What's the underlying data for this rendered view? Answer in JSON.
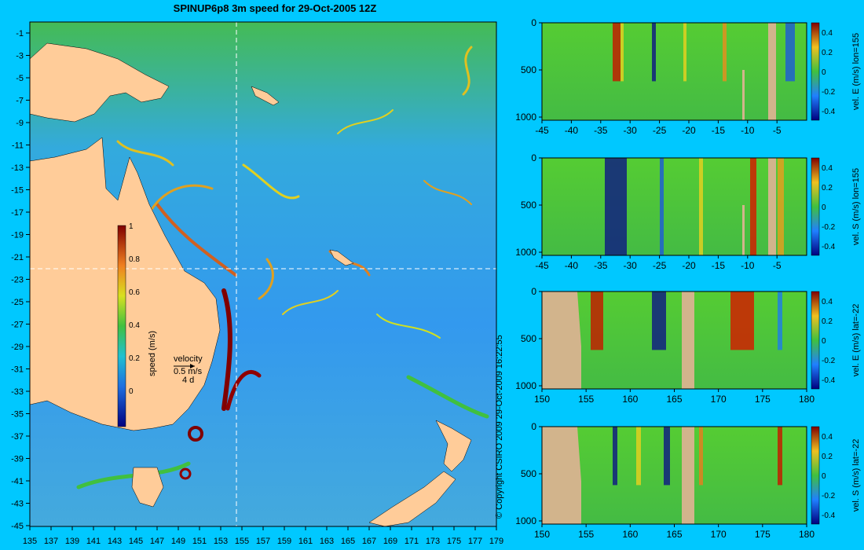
{
  "title": "SPINUP6p8 3m speed for 29-Oct-2005 12Z",
  "copyright": "© Copyright CSIRO 2009   29-Oct-2009 16:22:55",
  "colors": {
    "background": "#00c8ff",
    "land": "#ffcc99",
    "section_land": "#d2b48c"
  },
  "map": {
    "x_ticks": [
      "135",
      "137",
      "139",
      "141",
      "143",
      "145",
      "147",
      "149",
      "151",
      "153",
      "155",
      "157",
      "159",
      "161",
      "163",
      "165",
      "167",
      "169",
      "171",
      "173",
      "175",
      "177",
      "179"
    ],
    "y_ticks": [
      "-1",
      "-3",
      "-5",
      "-7",
      "-9",
      "-11",
      "-13",
      "-15",
      "-17",
      "-19",
      "-21",
      "-23",
      "-25",
      "-27",
      "-29",
      "-31",
      "-33",
      "-35",
      "-37",
      "-39",
      "-41",
      "-43",
      "-45"
    ],
    "colorbar": {
      "label": "speed (m/s)",
      "ticks": [
        "1",
        "0.8",
        "0.6",
        "0.4",
        "0.2",
        "0"
      ]
    },
    "velocity_key": {
      "label": "velocity",
      "speed": "0.5 m/s",
      "duration": "4 d"
    }
  },
  "sections": [
    {
      "label": "vel. E (m/s) lon=155",
      "x_ticks": [
        "-45",
        "-40",
        "-35",
        "-30",
        "-25",
        "-20",
        "-15",
        "-10",
        "-5"
      ],
      "y_ticks": [
        "0",
        "500",
        "1000"
      ],
      "cbar_ticks": [
        "0.4",
        "0.2",
        "0",
        "-0.2",
        "-0.4"
      ]
    },
    {
      "label": "vel. S (m/s) lon=155",
      "x_ticks": [
        "-45",
        "-40",
        "-35",
        "-30",
        "-25",
        "-20",
        "-15",
        "-10",
        "-5"
      ],
      "y_ticks": [
        "0",
        "500",
        "1000"
      ],
      "cbar_ticks": [
        "0.4",
        "0.2",
        "0",
        "-0.2",
        "-0.4"
      ]
    },
    {
      "label": "vel. E (m/s) lat=-22",
      "x_ticks": [
        "150",
        "155",
        "160",
        "165",
        "170",
        "175",
        "180"
      ],
      "y_ticks": [
        "0",
        "500",
        "1000"
      ],
      "cbar_ticks": [
        "0.4",
        "0.2",
        "0",
        "-0.2",
        "-0.4"
      ]
    },
    {
      "label": "vel. S (m/s) lat=-22",
      "x_ticks": [
        "150",
        "155",
        "160",
        "165",
        "170",
        "175",
        "180"
      ],
      "y_ticks": [
        "0",
        "500",
        "1000"
      ],
      "cbar_ticks": [
        "0.4",
        "0.2",
        "0",
        "-0.2",
        "-0.4"
      ]
    }
  ]
}
